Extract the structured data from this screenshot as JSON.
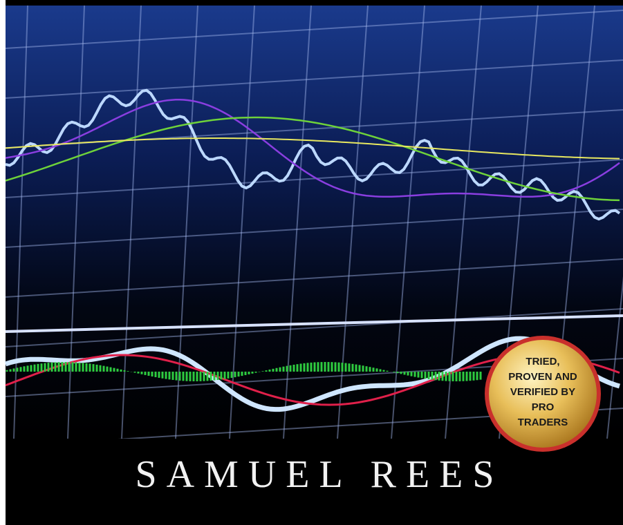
{
  "author": "SAMUEL REES",
  "badge": {
    "lines": [
      "TRIED,",
      "PROVEN AND",
      "VERIFIED BY",
      "PRO",
      "TRADERS"
    ]
  }
}
